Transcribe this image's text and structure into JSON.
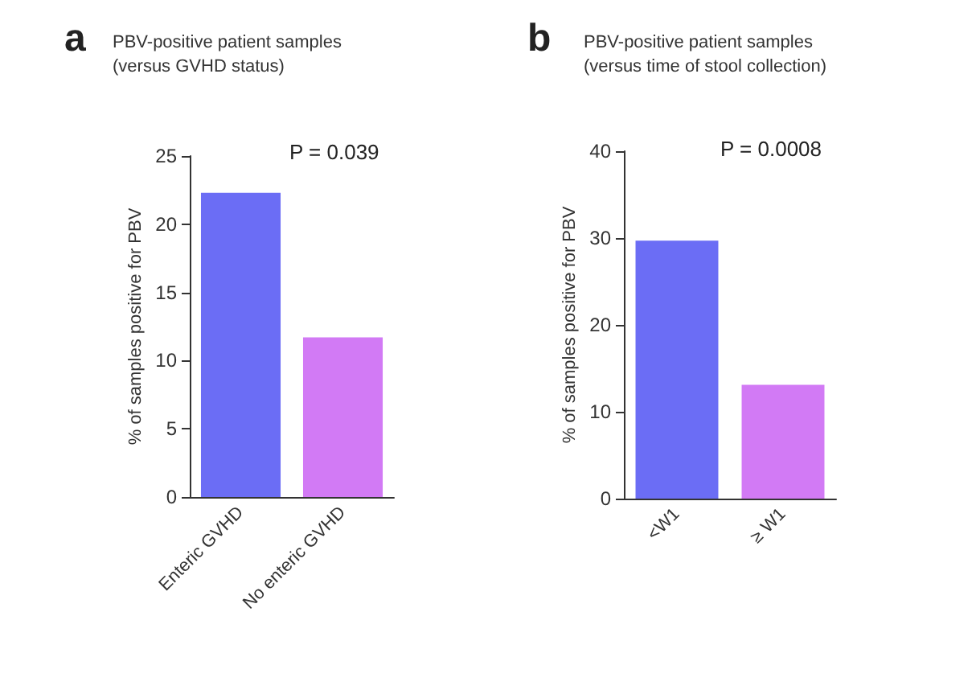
{
  "chart_data": [
    {
      "type": "bar",
      "title": "PBV-positive patient samples\n(versus GVHD status)",
      "ylabel": "% of samples positive for PBV",
      "categories": [
        "Enteric GVHD",
        "No enteric GVHD"
      ],
      "values": [
        22.3,
        11.7
      ],
      "colors": [
        "#6b6df5",
        "#d27af5"
      ],
      "ylim": [
        0,
        25
      ],
      "yticks": [
        0,
        5,
        10,
        15,
        20,
        25
      ],
      "grid": false,
      "annotations": [
        "a",
        "P = 0.039"
      ]
    },
    {
      "type": "bar",
      "title": "PBV-positive patient samples\n(versus time of stool collection)",
      "ylabel": "% of samples positive for PBV",
      "categories": [
        "<W1",
        "≥ W1"
      ],
      "values": [
        29.7,
        13.1
      ],
      "colors": [
        "#6b6df5",
        "#d27af5"
      ],
      "ylim": [
        0,
        40
      ],
      "yticks": [
        0,
        10,
        20,
        30,
        40
      ],
      "grid": false,
      "annotations": [
        "b",
        "P = 0.0008"
      ]
    }
  ]
}
